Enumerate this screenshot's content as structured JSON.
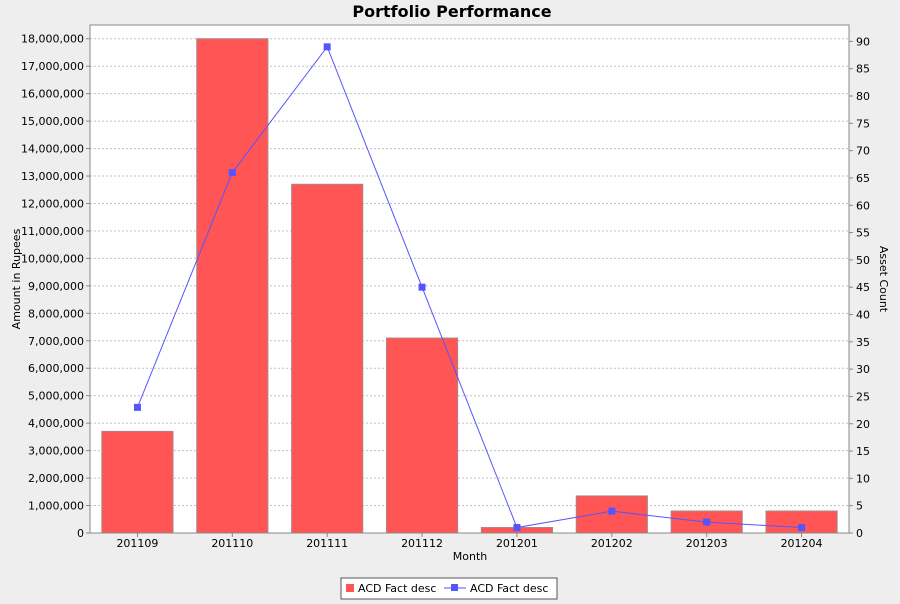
{
  "chart_data": {
    "type": "bar",
    "title": "Portfolio Performance",
    "xlabel": "Month",
    "ylabel": "Amount in Rupees",
    "y2label": "Asset Count",
    "categories": [
      "201109",
      "201110",
      "201111",
      "201112",
      "201201",
      "201202",
      "201203",
      "201204"
    ],
    "ylim": [
      0,
      18500000
    ],
    "y_ticks": [
      0,
      1000000,
      2000000,
      3000000,
      4000000,
      5000000,
      6000000,
      7000000,
      8000000,
      9000000,
      10000000,
      11000000,
      12000000,
      13000000,
      14000000,
      15000000,
      16000000,
      17000000,
      18000000
    ],
    "y_tick_labels": [
      "0",
      "1,000,000",
      "2,000,000",
      "3,000,000",
      "4,000,000",
      "5,000,000",
      "6,000,000",
      "7,000,000",
      "8,000,000",
      "9,000,000",
      "10,000,000",
      "11,000,000",
      "12,000,000",
      "13,000,000",
      "14,000,000",
      "15,000,000",
      "16,000,000",
      "17,000,000",
      "18,000,000"
    ],
    "y2lim": [
      0,
      93
    ],
    "y2_ticks": [
      0,
      5,
      10,
      15,
      20,
      25,
      30,
      35,
      40,
      45,
      50,
      55,
      60,
      65,
      70,
      75,
      80,
      85,
      90
    ],
    "y2_tick_labels": [
      "0",
      "5",
      "10",
      "15",
      "20",
      "25",
      "30",
      "35",
      "40",
      "45",
      "50",
      "55",
      "60",
      "65",
      "70",
      "75",
      "80",
      "85",
      "90"
    ],
    "grid": true,
    "legend_position": "bottom-center",
    "series": [
      {
        "name": "ACD Fact desc",
        "kind": "bar",
        "axis": "left",
        "color": "#ff5555",
        "values": [
          3700000,
          18000000,
          12700000,
          7100000,
          200000,
          1350000,
          800000,
          800000
        ]
      },
      {
        "name": "ACD Fact desc",
        "kind": "line",
        "axis": "right",
        "color": "#5555ff",
        "values": [
          23,
          66,
          89,
          45,
          1,
          4,
          2,
          1
        ]
      }
    ]
  }
}
